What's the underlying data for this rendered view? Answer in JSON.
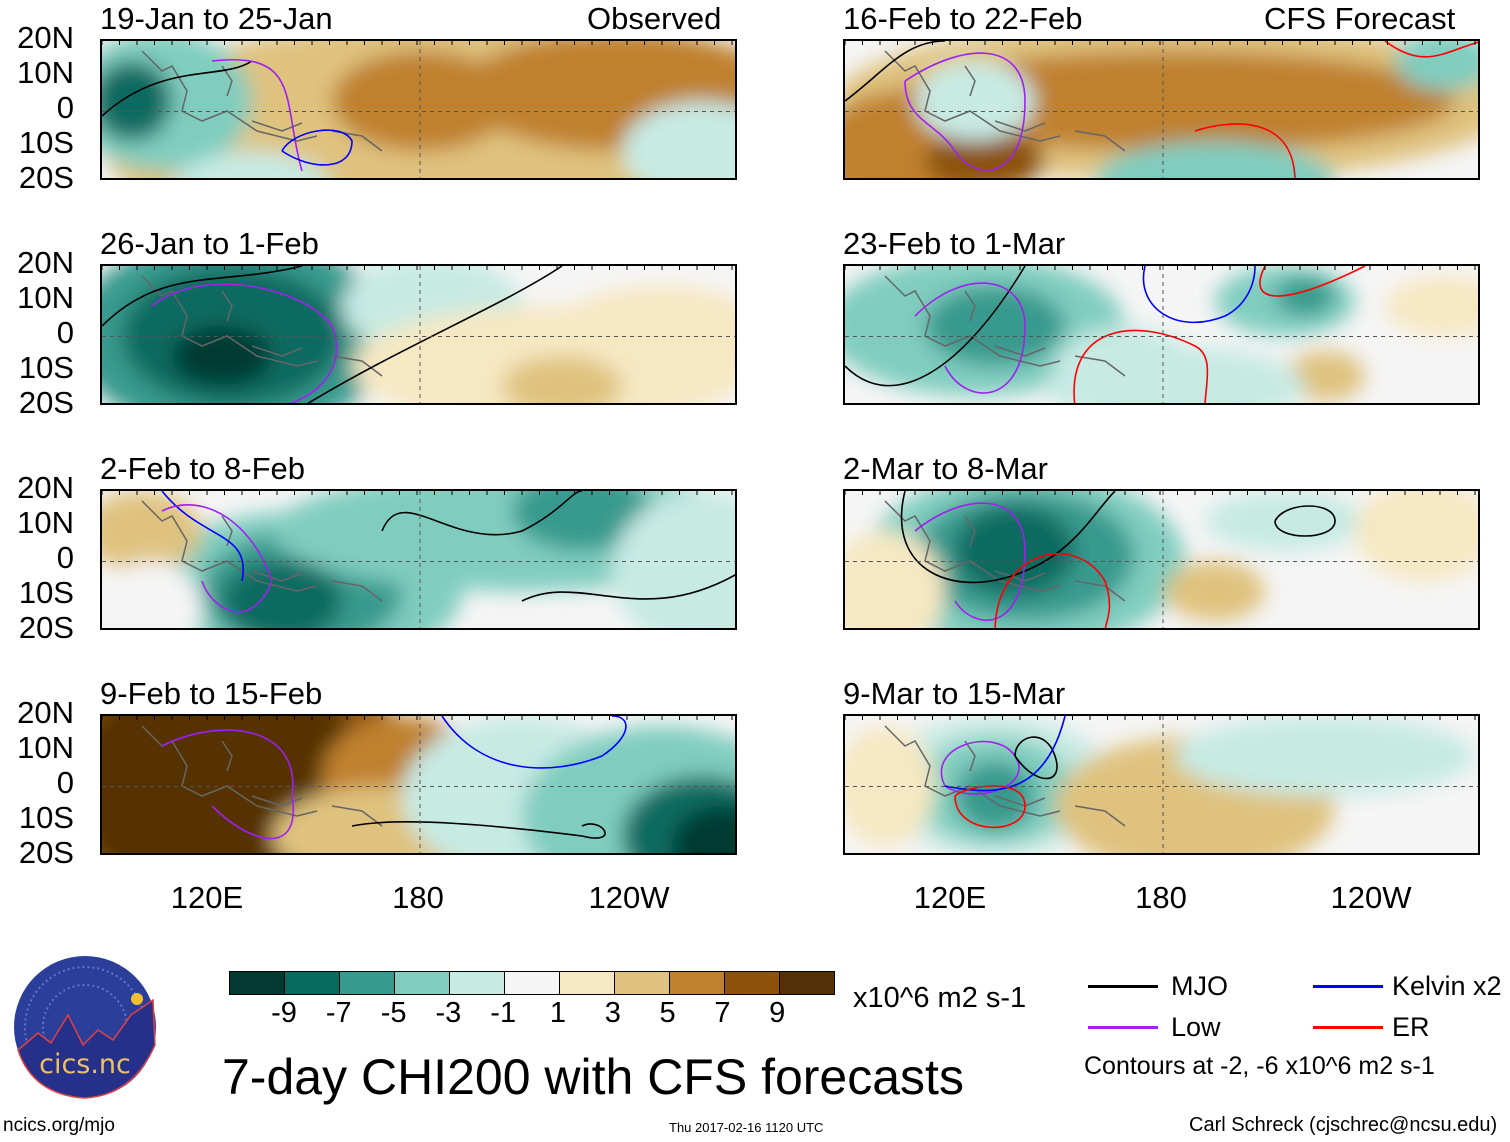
{
  "headers": {
    "observed": "Observed",
    "forecast": "CFS Forecast"
  },
  "panels": [
    {
      "title": "19-Jan to 25-Jan",
      "column": "observed"
    },
    {
      "title": "26-Jan to 1-Feb",
      "column": "observed"
    },
    {
      "title": "2-Feb to 8-Feb",
      "column": "observed"
    },
    {
      "title": "9-Feb to 15-Feb",
      "column": "observed"
    },
    {
      "title": "16-Feb to 22-Feb",
      "column": "forecast"
    },
    {
      "title": "23-Feb to 1-Mar",
      "column": "forecast"
    },
    {
      "title": "2-Mar to 8-Mar",
      "column": "forecast"
    },
    {
      "title": "9-Mar to 15-Mar",
      "column": "forecast"
    }
  ],
  "lat_labels": [
    "20N",
    "10N",
    "0",
    "10S",
    "20S"
  ],
  "lon_labels": [
    "120E",
    "180",
    "120W"
  ],
  "colorbar": {
    "labels": [
      "-9",
      "-7",
      "-5",
      "-3",
      "-1",
      "1",
      "3",
      "5",
      "7",
      "9"
    ],
    "colors": [
      "#023a32",
      "#096a60",
      "#389a8e",
      "#80cdbf",
      "#c7eae3",
      "#f5f5f5",
      "#f6e8c2",
      "#dfc27e",
      "#bf812e",
      "#8c520b",
      "#543006"
    ],
    "units": "x10^6 m2 s-1"
  },
  "title": "7-day CHI200 with CFS forecasts",
  "legend": {
    "items": [
      {
        "label": "MJO",
        "color": "#000000"
      },
      {
        "label": "Kelvin x2",
        "color": "#0000ff"
      },
      {
        "label": "Low",
        "color": "#a020f0"
      },
      {
        "label": "ER",
        "color": "#ff0000"
      }
    ],
    "note": "Contours at -2, -6 x10^6 m2 s-1"
  },
  "logo": {
    "text": "cics.nc",
    "ring_text": "Cooperative Institute for Climate and Satellites"
  },
  "footer": {
    "url": "ncics.org/mjo",
    "timestamp": "Thu 2017-02-16 1120 UTC",
    "author": "Carl Schreck (cjschrec@ncsu.edu)"
  }
}
